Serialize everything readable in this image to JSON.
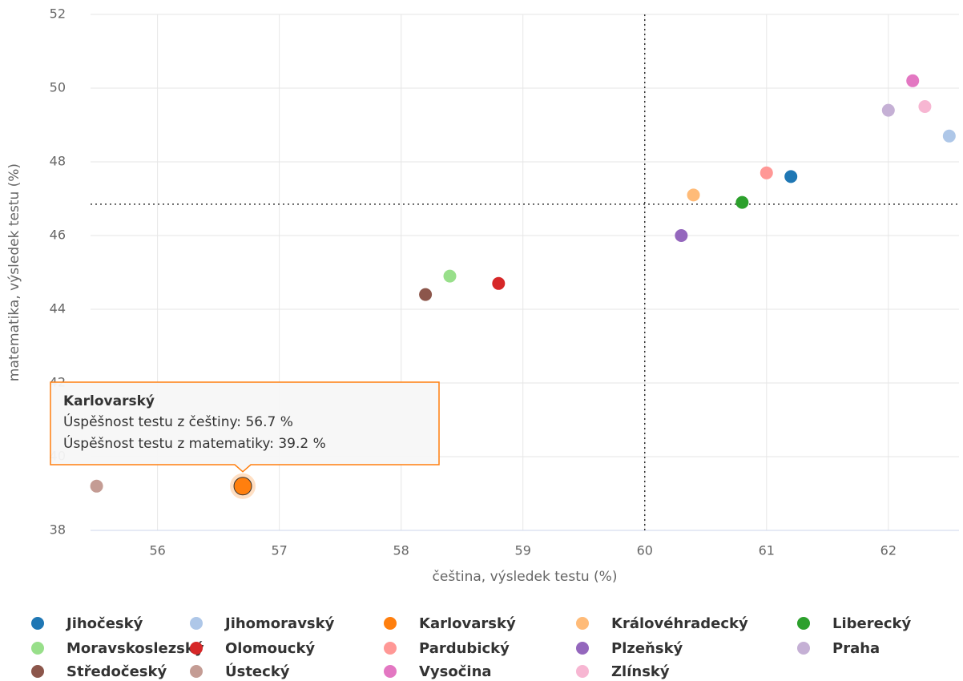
{
  "chart_data": {
    "type": "scatter",
    "xlabel": "čeština, výsledek testu (%)",
    "ylabel": "matematika, výsledek testu (%)",
    "xlim": [
      55.45,
      62.58
    ],
    "xticks": [
      56,
      57,
      58,
      59,
      60,
      61,
      62
    ],
    "ylim": [
      38,
      52
    ],
    "yticks": [
      38,
      40,
      42,
      44,
      46,
      48,
      50,
      52
    ],
    "grid": true,
    "reference_lines": {
      "x": 60,
      "y": 46.85
    },
    "legend": "bottom",
    "series": [
      {
        "name": "Jihočeský",
        "color": "#1f77b4",
        "x": [
          61.2
        ],
        "values": [
          47.6
        ]
      },
      {
        "name": "Jihomoravský",
        "color": "#aec7e8",
        "x": [
          62.5
        ],
        "values": [
          48.7
        ]
      },
      {
        "name": "Karlovarský",
        "color": "#ff7f0e",
        "x": [
          56.7
        ],
        "values": [
          39.2
        ]
      },
      {
        "name": "Královéhradecký",
        "color": "#ffbb78",
        "x": [
          60.4
        ],
        "values": [
          47.1
        ]
      },
      {
        "name": "Liberecký",
        "color": "#2ca02c",
        "x": [
          60.8
        ],
        "values": [
          46.9
        ]
      },
      {
        "name": "Moravskoslezský",
        "color": "#98df8a",
        "x": [
          58.4
        ],
        "values": [
          44.9
        ]
      },
      {
        "name": "Olomoucký",
        "color": "#d62728",
        "x": [
          58.8
        ],
        "values": [
          44.7
        ]
      },
      {
        "name": "Pardubický",
        "color": "#ff9896",
        "x": [
          61.0
        ],
        "values": [
          47.7
        ]
      },
      {
        "name": "Plzeňský",
        "color": "#9467bd",
        "x": [
          60.3
        ],
        "values": [
          46.0
        ]
      },
      {
        "name": "Praha",
        "color": "#c5b0d5",
        "x": [
          62.0
        ],
        "values": [
          49.4
        ]
      },
      {
        "name": "Středočeský",
        "color": "#8c564b",
        "x": [
          58.2
        ],
        "values": [
          44.4
        ]
      },
      {
        "name": "Ústecký",
        "color": "#c49c94",
        "x": [
          55.5
        ],
        "values": [
          39.2
        ]
      },
      {
        "name": "Vysočina",
        "color": "#e377c2",
        "x": [
          62.2
        ],
        "values": [
          50.2
        ]
      },
      {
        "name": "Zlínský",
        "color": "#f7b6d2",
        "x": [
          62.3
        ],
        "values": [
          49.5
        ]
      }
    ],
    "tooltip": {
      "title": "Karlovarský",
      "lines": [
        "Úspěšnost testu z češtiny: 56.7 %",
        "Úspěšnost testu z matematiky: 39.2 %"
      ]
    }
  }
}
